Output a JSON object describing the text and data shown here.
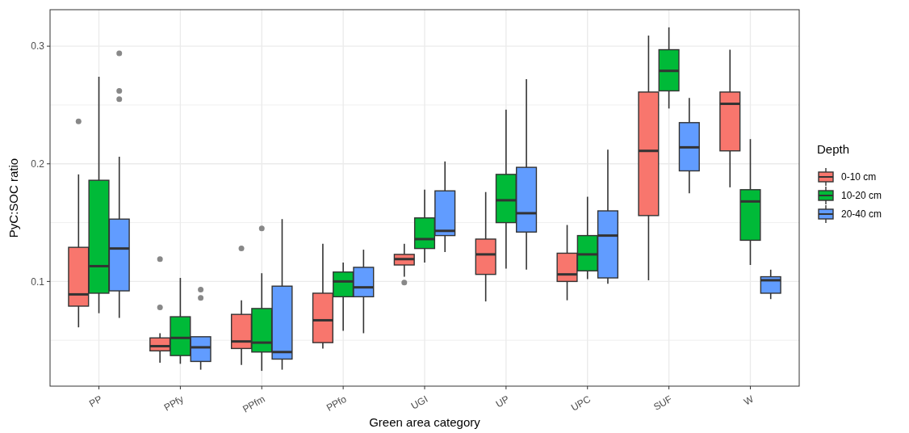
{
  "chart_data": {
    "type": "box",
    "xlabel": "Green area category",
    "ylabel": "PyC:SOC ratio",
    "legend_title": "Depth",
    "legend": "right",
    "grid": true,
    "categories": [
      "PP",
      "PPfy",
      "PPfm",
      "PPfo",
      "UGI",
      "UP",
      "UPC",
      "SUF",
      "W"
    ],
    "ylim": [
      0.011,
      0.331
    ],
    "yticks": [
      {
        "value": 0.05,
        "label": null
      },
      0.1,
      {
        "value": 0.15,
        "label": null
      },
      0.2,
      {
        "value": 0.25,
        "label": null
      },
      0.3
    ],
    "series": [
      {
        "name": "0-10 cm",
        "color": "#f8766d",
        "boxes": [
          {
            "low": 0.061,
            "q1": 0.079,
            "median": 0.089,
            "q3": 0.129,
            "high": 0.191,
            "outliers": [
              0.236
            ]
          },
          {
            "low": 0.031,
            "q1": 0.041,
            "median": 0.045,
            "q3": 0.052,
            "high": 0.056,
            "outliers": [
              0.119,
              0.078
            ]
          },
          {
            "low": 0.029,
            "q1": 0.043,
            "median": 0.049,
            "q3": 0.072,
            "high": 0.084,
            "outliers": [
              0.128
            ]
          },
          {
            "low": 0.043,
            "q1": 0.048,
            "median": 0.067,
            "q3": 0.09,
            "high": 0.132
          },
          {
            "low": 0.104,
            "q1": 0.114,
            "median": 0.119,
            "q3": 0.123,
            "high": 0.132,
            "outliers": [
              0.099
            ]
          },
          {
            "low": 0.083,
            "q1": 0.106,
            "median": 0.123,
            "q3": 0.136,
            "high": 0.176
          },
          {
            "low": 0.084,
            "q1": 0.1,
            "median": 0.106,
            "q3": 0.124,
            "high": 0.148
          },
          {
            "low": 0.101,
            "q1": 0.156,
            "median": 0.211,
            "q3": 0.261,
            "high": 0.309
          },
          {
            "low": 0.18,
            "q1": 0.211,
            "median": 0.251,
            "q3": 0.261,
            "high": 0.297
          }
        ]
      },
      {
        "name": "10-20 cm",
        "color": "#00ba38",
        "boxes": [
          {
            "low": 0.073,
            "q1": 0.09,
            "median": 0.113,
            "q3": 0.186,
            "high": 0.274
          },
          {
            "low": 0.03,
            "q1": 0.037,
            "median": 0.052,
            "q3": 0.07,
            "high": 0.103
          },
          {
            "low": 0.024,
            "q1": 0.04,
            "median": 0.048,
            "q3": 0.077,
            "high": 0.107,
            "outliers": [
              0.145
            ]
          },
          {
            "low": 0.058,
            "q1": 0.087,
            "median": 0.1,
            "q3": 0.108,
            "high": 0.116
          },
          {
            "low": 0.116,
            "q1": 0.128,
            "median": 0.136,
            "q3": 0.154,
            "high": 0.178
          },
          {
            "low": 0.111,
            "q1": 0.15,
            "median": 0.169,
            "q3": 0.191,
            "high": 0.246
          },
          {
            "low": 0.102,
            "q1": 0.109,
            "median": 0.123,
            "q3": 0.139,
            "high": 0.172
          },
          {
            "low": 0.247,
            "q1": 0.262,
            "median": 0.279,
            "q3": 0.297,
            "high": 0.316
          },
          {
            "low": 0.114,
            "q1": 0.135,
            "median": 0.168,
            "q3": 0.178,
            "high": 0.221
          }
        ]
      },
      {
        "name": "20-40 cm",
        "color": "#619cff",
        "boxes": [
          {
            "low": 0.069,
            "q1": 0.092,
            "median": 0.128,
            "q3": 0.153,
            "high": 0.206,
            "outliers": [
              0.294,
              0.262,
              0.255
            ]
          },
          {
            "low": 0.025,
            "q1": 0.032,
            "median": 0.044,
            "q3": 0.053,
            "high": 0.053,
            "outliers": [
              0.093,
              0.086
            ]
          },
          {
            "low": 0.025,
            "q1": 0.034,
            "median": 0.04,
            "q3": 0.096,
            "high": 0.153
          },
          {
            "low": 0.056,
            "q1": 0.087,
            "median": 0.095,
            "q3": 0.112,
            "high": 0.127
          },
          {
            "low": 0.125,
            "q1": 0.139,
            "median": 0.143,
            "q3": 0.177,
            "high": 0.202
          },
          {
            "low": 0.11,
            "q1": 0.142,
            "median": 0.158,
            "q3": 0.197,
            "high": 0.272
          },
          {
            "low": 0.098,
            "q1": 0.103,
            "median": 0.139,
            "q3": 0.16,
            "high": 0.212
          },
          {
            "low": 0.175,
            "q1": 0.194,
            "median": 0.214,
            "q3": 0.235,
            "high": 0.256
          },
          {
            "low": 0.085,
            "q1": 0.09,
            "median": 0.101,
            "q3": 0.104,
            "high": 0.11
          }
        ]
      }
    ]
  }
}
